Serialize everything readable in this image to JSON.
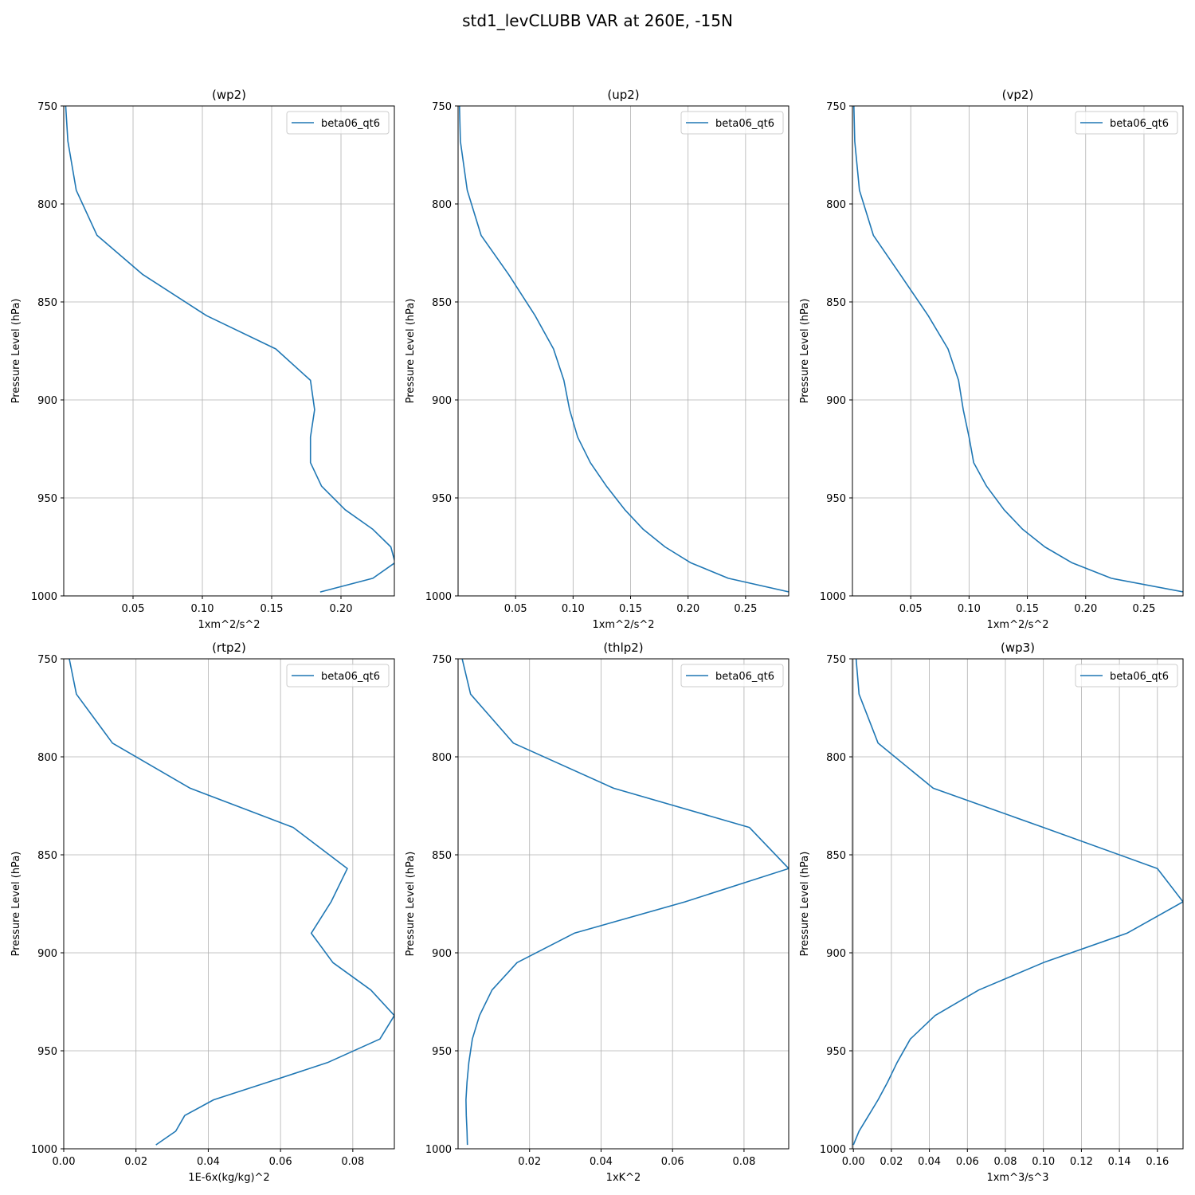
{
  "suptitle": "std1_levCLUBB VAR at 260E, -15N",
  "chart_data": [
    {
      "type": "line",
      "title": "(wp2)",
      "xlabel": "1xm^2/s^2",
      "ylabel": "Pressure Level (hPa)",
      "xlim": [
        0.0,
        0.2385
      ],
      "ylim": [
        1000,
        750
      ],
      "xticks": [
        0.05,
        0.1,
        0.15,
        0.2
      ],
      "xtick_labels": [
        "0.05",
        "0.10",
        "0.15",
        "0.20"
      ],
      "yticks": [
        750,
        800,
        850,
        900,
        950,
        1000
      ],
      "ytick_labels": [
        "750",
        "800",
        "850",
        "900",
        "950",
        "1000"
      ],
      "grid": true,
      "legend": "upper right",
      "series": [
        {
          "name": "beta06_qt6",
          "color": "#1f77b4",
          "x": [
            0.001,
            0.003,
            0.009,
            0.024,
            0.057,
            0.103,
            0.153,
            0.178,
            0.181,
            0.178,
            0.178,
            0.186,
            0.203,
            0.223,
            0.236,
            0.239,
            0.223,
            0.185
          ],
          "y": [
            745,
            768,
            793,
            816,
            836,
            857,
            874,
            890,
            905,
            919,
            932,
            944,
            956,
            966,
            975,
            983,
            991,
            998
          ]
        }
      ]
    },
    {
      "type": "line",
      "title": "(up2)",
      "xlabel": "1xm^2/s^2",
      "ylabel": "Pressure Level (hPa)",
      "xlim": [
        0.0,
        0.2875
      ],
      "ylim": [
        1000,
        750
      ],
      "xticks": [
        0.05,
        0.1,
        0.15,
        0.2,
        0.25
      ],
      "xtick_labels": [
        "0.05",
        "0.10",
        "0.15",
        "0.20",
        "0.25"
      ],
      "yticks": [
        750,
        800,
        850,
        900,
        950,
        1000
      ],
      "ytick_labels": [
        "750",
        "800",
        "850",
        "900",
        "950",
        "1000"
      ],
      "grid": true,
      "legend": "upper right",
      "series": [
        {
          "name": "beta06_qt6",
          "color": "#1f77b4",
          "x": [
            0.001,
            0.002,
            0.008,
            0.02,
            0.044,
            0.067,
            0.083,
            0.092,
            0.097,
            0.104,
            0.115,
            0.129,
            0.145,
            0.161,
            0.18,
            0.202,
            0.235,
            0.288
          ],
          "y": [
            745,
            768,
            793,
            816,
            836,
            857,
            874,
            890,
            905,
            919,
            932,
            944,
            956,
            966,
            975,
            983,
            991,
            998
          ]
        }
      ]
    },
    {
      "type": "line",
      "title": "(vp2)",
      "xlabel": "1xm^2/s^2",
      "ylabel": "Pressure Level (hPa)",
      "xlim": [
        0.0,
        0.2835
      ],
      "ylim": [
        1000,
        750
      ],
      "xticks": [
        0.05,
        0.1,
        0.15,
        0.2,
        0.25
      ],
      "xtick_labels": [
        "0.05",
        "0.10",
        "0.15",
        "0.20",
        "0.25"
      ],
      "yticks": [
        750,
        800,
        850,
        900,
        950,
        1000
      ],
      "ytick_labels": [
        "750",
        "800",
        "850",
        "900",
        "950",
        "1000"
      ],
      "grid": true,
      "legend": "upper right",
      "series": [
        {
          "name": "beta06_qt6",
          "color": "#1f77b4",
          "x": [
            0.001,
            0.002,
            0.006,
            0.018,
            0.041,
            0.065,
            0.082,
            0.091,
            0.095,
            0.1,
            0.104,
            0.115,
            0.13,
            0.146,
            0.165,
            0.188,
            0.222,
            0.284
          ],
          "y": [
            745,
            768,
            793,
            816,
            836,
            857,
            874,
            890,
            905,
            919,
            932,
            944,
            956,
            966,
            975,
            983,
            991,
            998
          ]
        }
      ]
    },
    {
      "type": "line",
      "title": "(rtp2)",
      "xlabel": "1E-6x(kg/kg)^2",
      "ylabel": "Pressure Level (hPa)",
      "xlim": [
        0.0,
        0.0915
      ],
      "ylim": [
        1000,
        750
      ],
      "xticks": [
        0.0,
        0.02,
        0.04,
        0.06,
        0.08
      ],
      "xtick_labels": [
        "0.00",
        "0.02",
        "0.04",
        "0.06",
        "0.08"
      ],
      "yticks": [
        750,
        800,
        850,
        900,
        950,
        1000
      ],
      "ytick_labels": [
        "750",
        "800",
        "850",
        "900",
        "950",
        "1000"
      ],
      "grid": true,
      "legend": "upper right",
      "series": [
        {
          "name": "beta06_qt6",
          "color": "#1f77b4",
          "x": [
            0.001,
            0.0035,
            0.0135,
            0.035,
            0.0635,
            0.0785,
            0.074,
            0.0685,
            0.0745,
            0.085,
            0.0915,
            0.0875,
            0.073,
            0.0565,
            0.0415,
            0.0335,
            0.031,
            0.0255
          ],
          "y": [
            745,
            768,
            793,
            816,
            836,
            857,
            874,
            890,
            905,
            919,
            932,
            944,
            956,
            966,
            975,
            983,
            991,
            998
          ]
        }
      ]
    },
    {
      "type": "line",
      "title": "(thlp2)",
      "xlabel": "1xK^2",
      "ylabel": "Pressure Level (hPa)",
      "xlim": [
        0.0,
        0.0925
      ],
      "ylim": [
        1000,
        750
      ],
      "xticks": [
        0.02,
        0.04,
        0.06,
        0.08
      ],
      "xtick_labels": [
        "0.02",
        "0.04",
        "0.06",
        "0.08"
      ],
      "yticks": [
        750,
        800,
        850,
        900,
        950,
        1000
      ],
      "ytick_labels": [
        "750",
        "800",
        "850",
        "900",
        "950",
        "1000"
      ],
      "grid": true,
      "legend": "upper right",
      "series": [
        {
          "name": "beta06_qt6",
          "color": "#1f77b4",
          "x": [
            0.0005,
            0.0035,
            0.0155,
            0.0435,
            0.0815,
            0.0925,
            0.0635,
            0.0325,
            0.0165,
            0.0095,
            0.006,
            0.004,
            0.003,
            0.0025,
            0.0022,
            0.0023,
            0.0025,
            0.0026
          ],
          "y": [
            745,
            768,
            793,
            816,
            836,
            857,
            874,
            890,
            905,
            919,
            932,
            944,
            956,
            966,
            975,
            983,
            991,
            998
          ]
        }
      ]
    },
    {
      "type": "line",
      "title": "(wp3)",
      "xlabel": "1xm^3/s^3",
      "ylabel": "Pressure Level (hPa)",
      "xlim": [
        -0.0005,
        0.1735
      ],
      "ylim": [
        1000,
        750
      ],
      "xticks": [
        0.0,
        0.02,
        0.04,
        0.06,
        0.08,
        0.1,
        0.12,
        0.14,
        0.16
      ],
      "xtick_labels": [
        "0.00",
        "0.02",
        "0.04",
        "0.06",
        "0.08",
        "0.10",
        "0.12",
        "0.14",
        "0.16"
      ],
      "yticks": [
        750,
        800,
        850,
        900,
        950,
        1000
      ],
      "ytick_labels": [
        "750",
        "800",
        "850",
        "900",
        "950",
        "1000"
      ],
      "grid": true,
      "legend": "upper right",
      "series": [
        {
          "name": "beta06_qt6",
          "color": "#1f77b4",
          "x": [
            0.001,
            0.003,
            0.013,
            0.042,
            0.1,
            0.16,
            0.1735,
            0.144,
            0.1,
            0.066,
            0.043,
            0.03,
            0.023,
            0.018,
            0.013,
            0.008,
            0.003,
            0.0
          ],
          "y": [
            745,
            768,
            793,
            816,
            836,
            857,
            874,
            890,
            905,
            919,
            932,
            944,
            956,
            966,
            975,
            983,
            991,
            998
          ]
        }
      ]
    }
  ]
}
